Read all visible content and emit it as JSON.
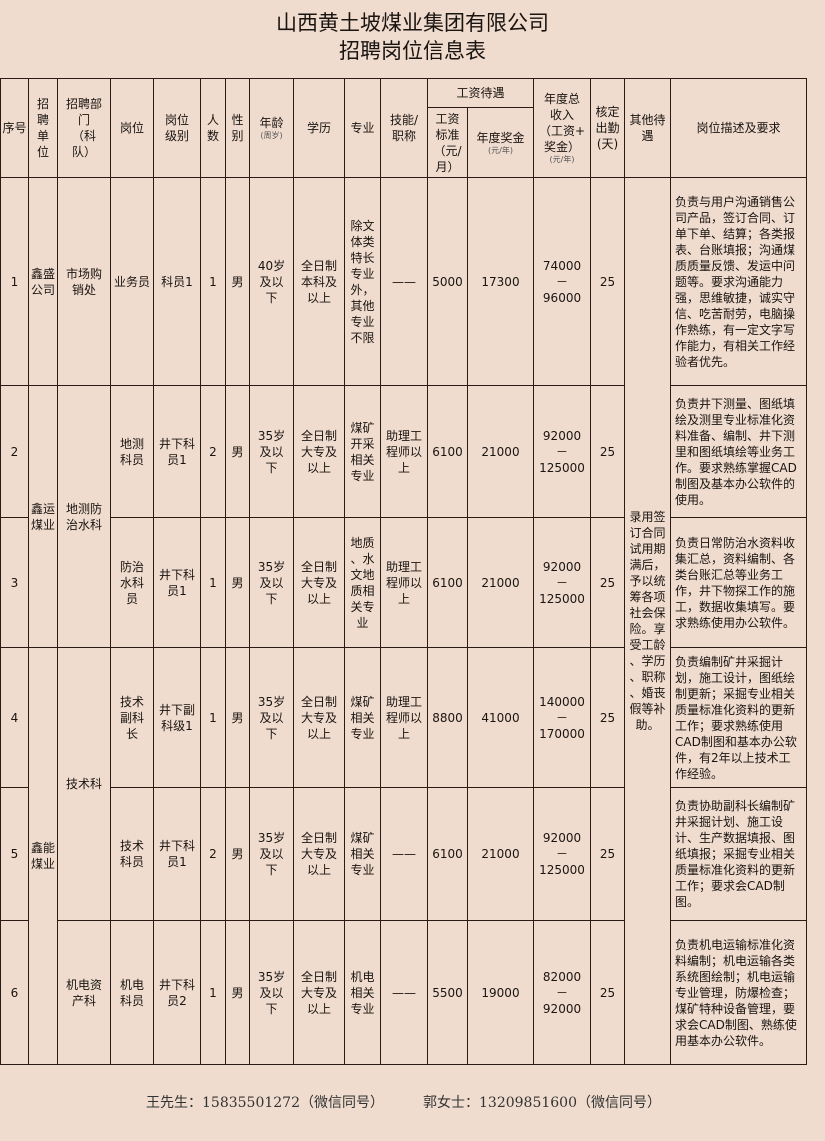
{
  "title": {
    "line1": "山西黄土坡煤业集团有限公司",
    "line2": "招聘岗位信息表"
  },
  "headers": {
    "seq": "序号",
    "unit": "招\n聘\n单\n位",
    "dept": "招聘部\n门\n（科\n队）",
    "post": "岗位",
    "level": "岗位\n级别",
    "count": "人\n数",
    "gender": "性\n别",
    "age": "年龄",
    "age_unit": "(周岁)",
    "education": "学历",
    "major": "专业",
    "skill": "技能/\n职称",
    "salary_group": "工资待遇",
    "salary": "工资\n标准\n（元/\n月）",
    "bonus": "年度奖金",
    "bonus_unit": "(元/年)",
    "total": "年度总\n收入\n（工资+\n奖金）",
    "total_unit": "(元/年)",
    "days": "核定\n出勤\n(天)",
    "other": "其他待\n遇",
    "desc": "岗位描述及要求"
  },
  "units": [
    "鑫盛公司",
    "鑫运\n煤业",
    "鑫能\n煤业"
  ],
  "depts": [
    "市场购\n销处",
    "地测防\n治水科",
    "技术科",
    "机电资\n产科"
  ],
  "other_benefits": "录用签\n订合同\n试用期\n满后，\n予以统\n筹各项\n社会保\n险。享\n受工龄\n、学历\n、职称\n、婚丧\n假等补\n助。",
  "rows": [
    {
      "seq": "1",
      "post": "业务员",
      "level": "科员1",
      "count": "1",
      "gender": "男",
      "age": "40岁\n及以\n下",
      "education": "全日制\n本科及\n以上",
      "major": "除文\n体类\n特长\n专业\n外，\n其他\n专业\n不限",
      "skill": "——",
      "salary": "5000",
      "bonus": "17300",
      "total": "74000\n－\n96000",
      "days": "25",
      "desc": "负责与用户沟通销售公司产品，签订合同、订单下单、结算；各类报表、台账填报；沟通煤质质量反馈、发运中问题等。要求沟通能力强，思维敏捷，诚实守信、吃苦耐劳，电脑操作熟练，有一定文字写作能力，有相关工作经验者优先。"
    },
    {
      "seq": "2",
      "post": "地测\n科员",
      "level": "井下科\n员1",
      "count": "2",
      "gender": "男",
      "age": "35岁\n及以\n下",
      "education": "全日制\n大专及\n以上",
      "major": "煤矿\n开采\n相关\n专业",
      "skill": "助理工\n程师以\n上",
      "salary": "6100",
      "bonus": "21000",
      "total": "92000\n－\n125000",
      "days": "25",
      "desc": "负责井下测量、图纸填绘及测里专业标准化资料准备、编制、井下测里和图纸填绘等业务工作。要求熟练掌握CAD制图及基本办公软件的使用。"
    },
    {
      "seq": "3",
      "post": "防治\n水科\n员",
      "level": "井下科\n员1",
      "count": "1",
      "gender": "男",
      "age": "35岁\n及以\n下",
      "education": "全日制\n大专及\n以上",
      "major": "地质\n、水\n文地\n质相\n关专\n业",
      "skill": "助理工\n程师以\n上",
      "salary": "6100",
      "bonus": "21000",
      "total": "92000\n－\n125000",
      "days": "25",
      "desc": "负责日常防治水资料收集汇总，资料编制、各类台账汇总等业务工作，井下物探工作的施工，数据收集填写。要求熟练使用办公软件。"
    },
    {
      "seq": "4",
      "post": "技术\n副科\n长",
      "level": "井下副\n科级1",
      "count": "1",
      "gender": "男",
      "age": "35岁\n及以\n下",
      "education": "全日制\n大专及\n以上",
      "major": "煤矿\n相关\n专业",
      "skill": "助理工\n程师以\n上",
      "salary": "8800",
      "bonus": "41000",
      "total": "140000\n－\n170000",
      "days": "25",
      "desc": "负责编制矿井采掘计划，施工设计，图纸绘制更新；采掘专业相关质量标准化资料的更新工作；要求熟练使用CAD制图和基本办公软件，有2年以上技术工作经验。"
    },
    {
      "seq": "5",
      "post": "技术\n科员",
      "level": "井下科\n员1",
      "count": "2",
      "gender": "男",
      "age": "35岁\n及以\n下",
      "education": "全日制\n大专及\n以上",
      "major": "煤矿\n相关\n专业",
      "skill": "——",
      "salary": "6100",
      "bonus": "21000",
      "total": "92000\n－\n125000",
      "days": "25",
      "desc": "负责协助副科长编制矿井采掘计划、施工设计、生产数据填报、图纸填报；采掘专业相关质量标准化资料的更新工作；要求会CAD制图。"
    },
    {
      "seq": "6",
      "post": "机电\n科员",
      "level": "井下科\n员2",
      "count": "1",
      "gender": "男",
      "age": "35岁\n及以\n下",
      "education": "全日制\n大专及\n以上",
      "major": "机电\n相关\n专业",
      "skill": "——",
      "salary": "5500",
      "bonus": "19000",
      "total": "82000\n－\n92000",
      "days": "25",
      "desc": "负责机电运输标准化资料编制；机电运输各类系统图绘制；机电运输专业管理，防爆检查；煤矿特种设备管理，要求会CAD制图、熟练使用基本办公软件。"
    }
  ],
  "contacts": [
    {
      "text": "王先生：15835501272（微信同号）"
    },
    {
      "text": "郭女士：13209851600（微信同号）"
    }
  ]
}
